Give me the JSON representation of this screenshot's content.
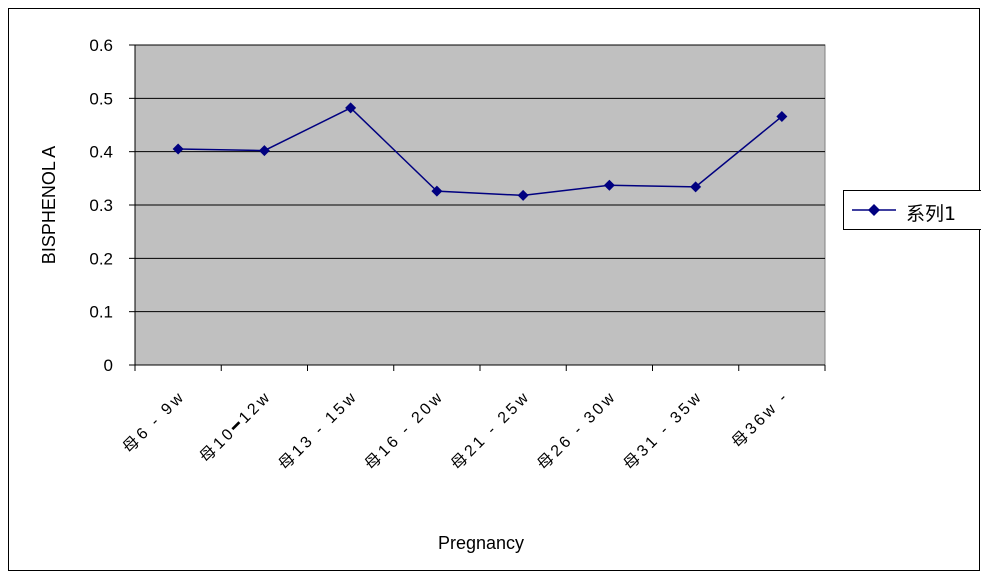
{
  "colors": {
    "plot_background": "#c0c0c0",
    "series_line": "#000080",
    "gridline": "#000000"
  },
  "chart_data": {
    "type": "line",
    "title": "",
    "xlabel": "Pregnancy",
    "ylabel": "BISPHENOL A",
    "ylim": [
      0,
      0.6
    ],
    "yticks": [
      "0",
      "0.1",
      "0.2",
      "0.3",
      "0.4",
      "0.5",
      "0.6"
    ],
    "grid": true,
    "legend_position": "right",
    "categories": [
      "母6 - 9w",
      "母10━12w",
      "母13 - 15w",
      "母16 - 20w",
      "母21 - 25w",
      "母26 - 30w",
      "母31 - 35w",
      "母36w -"
    ],
    "series": [
      {
        "name": "系列1",
        "marker": "diamond",
        "values": [
          0.405,
          0.402,
          0.482,
          0.326,
          0.318,
          0.337,
          0.334,
          0.466
        ]
      }
    ]
  }
}
